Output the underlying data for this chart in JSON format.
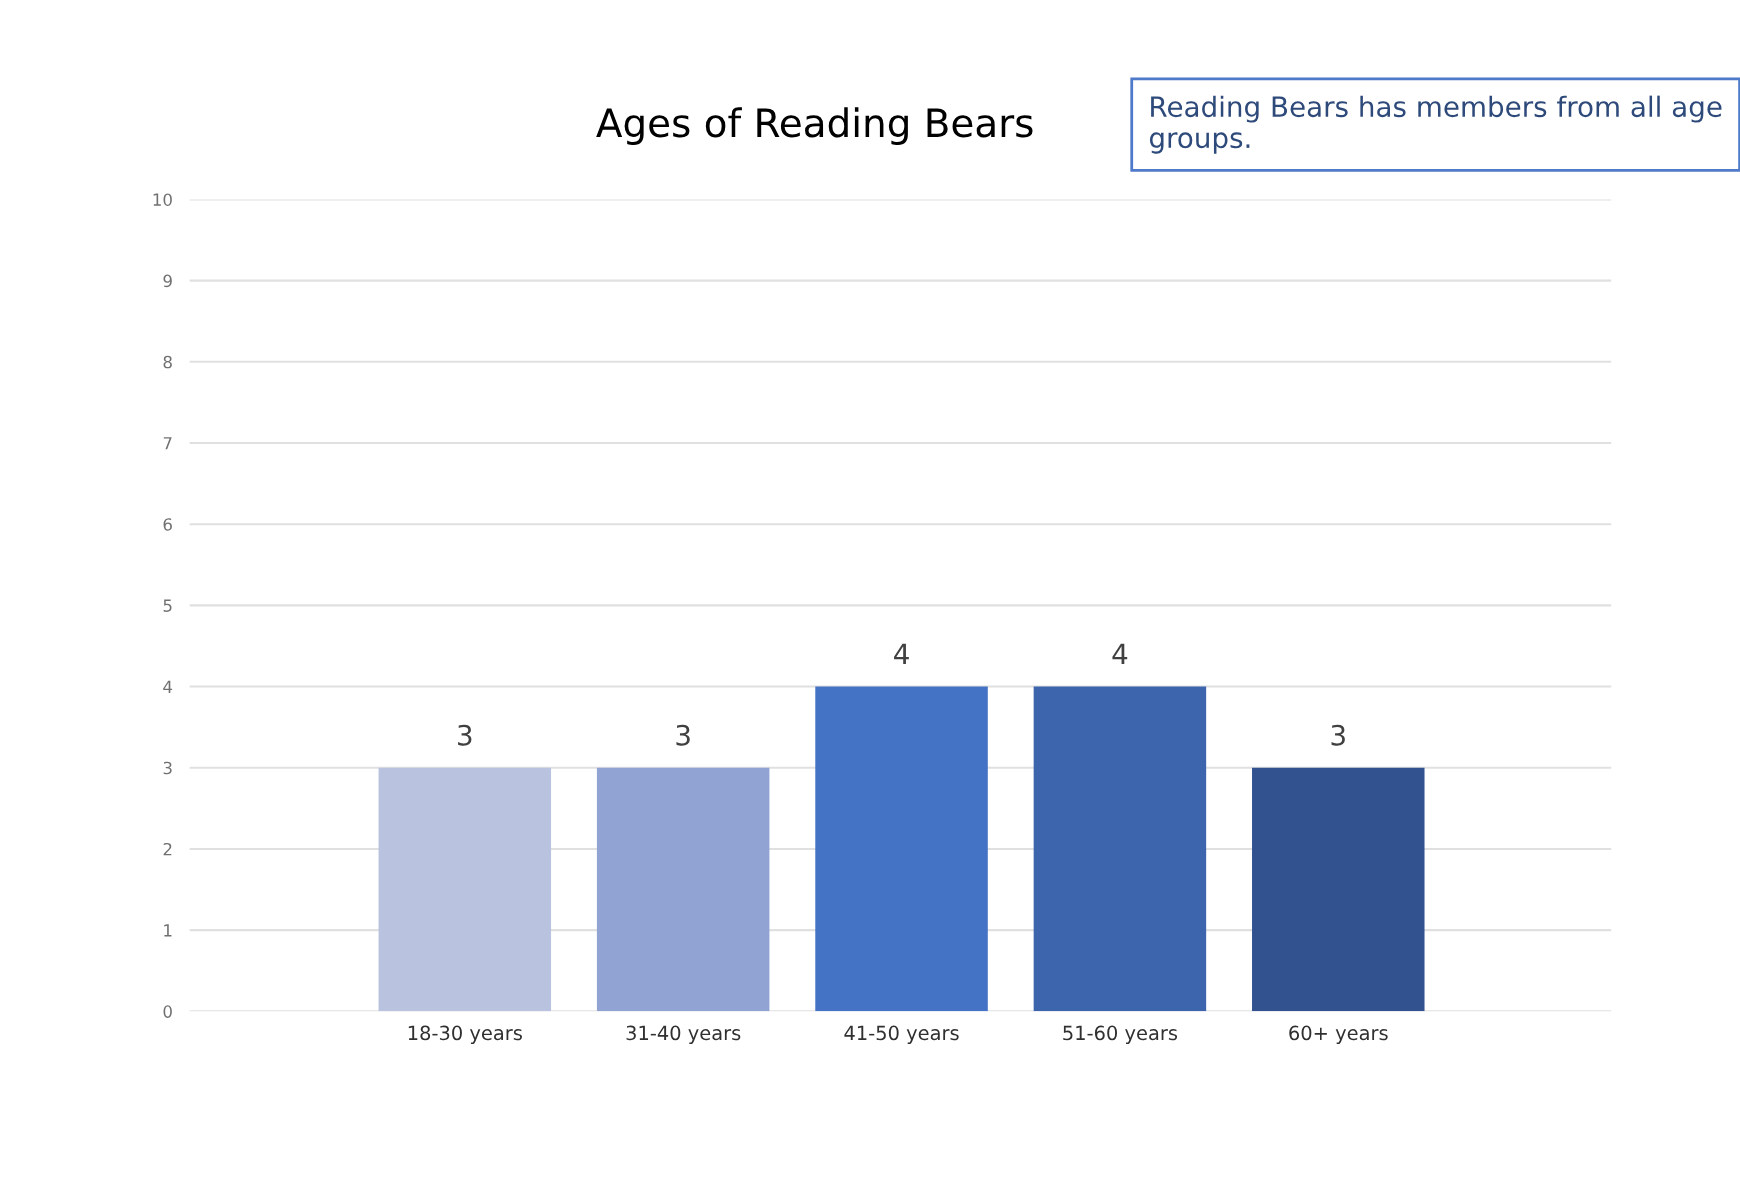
{
  "chart_data": {
    "type": "bar",
    "title": "Ages of Reading Bears",
    "categories": [
      "18-30 years",
      "31-40 years",
      "41-50 years",
      "51-60 years",
      "60+ years"
    ],
    "values": [
      3,
      3,
      4,
      4,
      3
    ],
    "colors": [
      "#b9c3e0",
      "#90a3d3",
      "#4472c4",
      "#3d65ad",
      "#31528e"
    ],
    "ylim": [
      0,
      10
    ],
    "yticks": [
      0,
      1,
      2,
      3,
      4,
      5,
      6,
      7,
      8,
      9,
      10
    ],
    "grid": "y",
    "data_labels": true,
    "legend": false,
    "annotations": [
      "Reading Bears has members from all age groups."
    ]
  }
}
